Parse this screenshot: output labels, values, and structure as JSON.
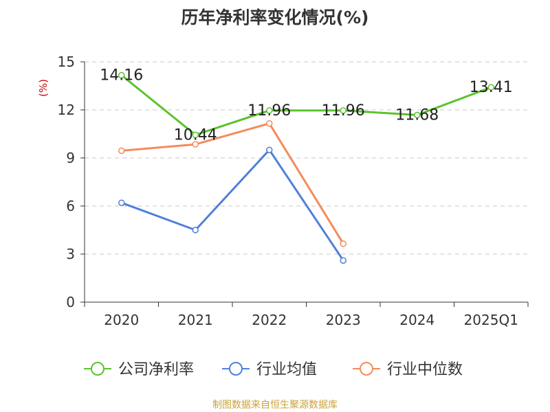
{
  "chart_data": {
    "type": "line",
    "title": "历年净利率变化情况(%)",
    "ylabel": "(%)",
    "xlabel": "",
    "categories": [
      "2020",
      "2021",
      "2022",
      "2023",
      "2024",
      "2025Q1"
    ],
    "ylim": [
      0,
      15
    ],
    "yticks": [
      0,
      3,
      6,
      9,
      12,
      15
    ],
    "grid": true,
    "legend_position": "bottom",
    "series": [
      {
        "name": "公司净利率",
        "color": "#5cc22c",
        "values": [
          14.16,
          10.44,
          11.96,
          11.96,
          11.68,
          13.41
        ],
        "data_labels": [
          "14.16",
          "10.44",
          "11.96",
          "11.96",
          "11.68",
          "13.41"
        ]
      },
      {
        "name": "行业均值",
        "color": "#4f7fdb",
        "values": [
          6.2,
          4.5,
          9.5,
          2.6,
          null,
          null
        ]
      },
      {
        "name": "行业中位数",
        "color": "#f48b5a",
        "values": [
          9.45,
          9.85,
          11.15,
          3.65,
          null,
          null
        ]
      }
    ]
  },
  "footer": {
    "source": "制图数据来自恒生聚源数据库"
  }
}
